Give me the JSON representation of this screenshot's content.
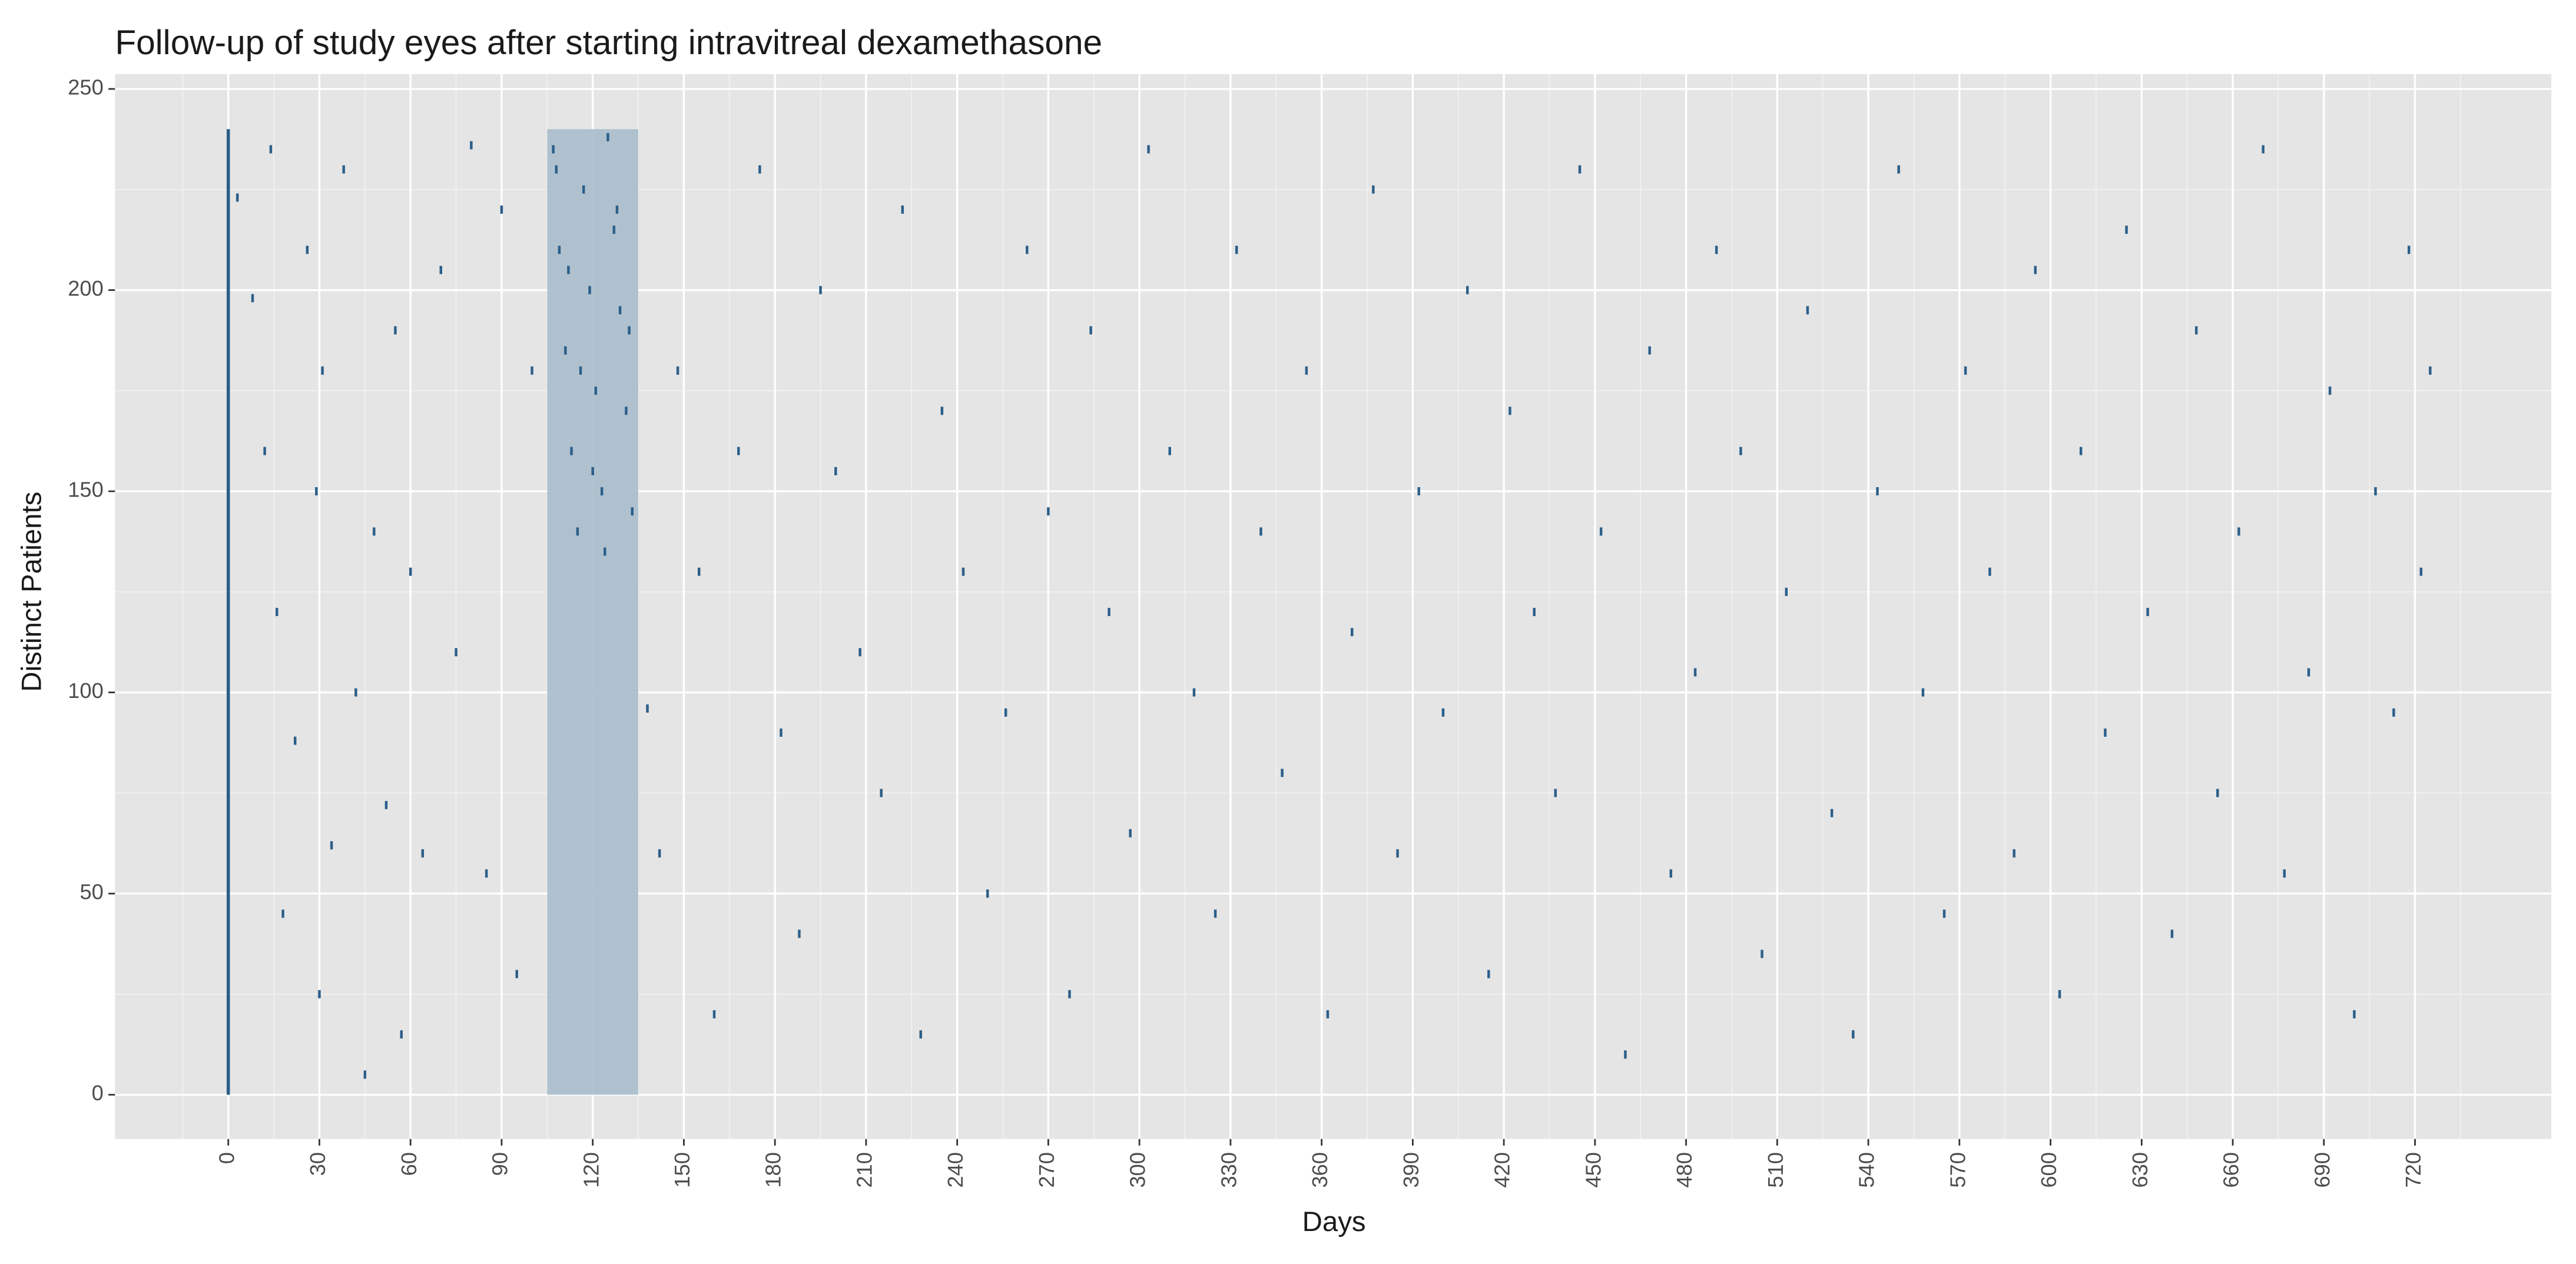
{
  "chart_data": {
    "type": "scatter",
    "title": "Follow-up of study eyes after starting intravitreal dexamethasone",
    "x_label": "Days",
    "y_label": "Distinct Patients",
    "xlim": [
      -37.3,
      764.9
    ],
    "ylim": [
      -11.0,
      253.7
    ],
    "xticks": [
      0,
      30,
      60,
      90,
      120,
      150,
      180,
      210,
      240,
      270,
      300,
      330,
      360,
      390,
      420,
      450,
      480,
      510,
      540,
      570,
      600,
      630,
      660,
      690,
      720
    ],
    "yticks": [
      0,
      50,
      100,
      150,
      200,
      250
    ],
    "grid": true,
    "highlight_band": {
      "xmin": 105,
      "xmax": 135,
      "ymin": 0,
      "ymax": 240,
      "color": "#a9bccb"
    },
    "baseline": {
      "x": 0,
      "ymin": 0,
      "ymax": 240,
      "color": "#2c5f8a"
    },
    "series": [
      {
        "color": "#2c5f8a",
        "x": [
          3,
          8,
          12,
          14,
          16,
          18,
          22,
          26,
          29,
          30,
          31,
          34,
          38,
          42,
          45,
          48,
          52,
          55,
          57,
          60,
          64,
          70,
          75,
          80,
          85,
          90,
          95,
          100,
          107,
          109,
          111,
          113,
          115,
          117,
          119,
          121,
          123,
          125,
          127,
          129,
          131,
          133,
          108,
          112,
          116,
          120,
          124,
          128,
          132,
          138,
          142,
          148,
          155,
          160,
          168,
          175,
          182,
          188,
          195,
          200,
          208,
          215,
          222,
          228,
          235,
          242,
          250,
          256,
          263,
          270,
          277,
          284,
          290,
          297,
          303,
          310,
          318,
          325,
          332,
          340,
          347,
          355,
          362,
          370,
          377,
          385,
          392,
          400,
          408,
          415,
          422,
          430,
          437,
          445,
          452,
          460,
          468,
          475,
          483,
          490,
          498,
          505,
          513,
          520,
          528,
          535,
          543,
          550,
          558,
          565,
          572,
          580,
          588,
          595,
          603,
          610,
          618,
          625,
          632,
          640,
          648,
          655,
          662,
          670,
          677,
          685,
          692,
          700,
          707,
          713,
          718,
          722,
          725
        ],
        "values": [
          223,
          198,
          160,
          235,
          120,
          45,
          88,
          210,
          150,
          25,
          180,
          62,
          230,
          100,
          5,
          140,
          72,
          190,
          15,
          130,
          60,
          205,
          110,
          236,
          55,
          220,
          30,
          180,
          235,
          210,
          185,
          160,
          140,
          225,
          200,
          175,
          150,
          238,
          215,
          195,
          170,
          145,
          230,
          205,
          180,
          155,
          135,
          220,
          190,
          96,
          60,
          180,
          130,
          20,
          160,
          230,
          90,
          40,
          200,
          155,
          110,
          75,
          220,
          15,
          170,
          130,
          50,
          95,
          210,
          145,
          25,
          190,
          120,
          65,
          235,
          160,
          100,
          45,
          210,
          140,
          80,
          180,
          20,
          115,
          225,
          60,
          150,
          95,
          200,
          30,
          170,
          120,
          75,
          230,
          140,
          10,
          185,
          55,
          105,
          210,
          160,
          35,
          125,
          195,
          70,
          15,
          150,
          230,
          100,
          45,
          180,
          130,
          60,
          205,
          25,
          160,
          90,
          215,
          120,
          40,
          190,
          75,
          140,
          235,
          55,
          105,
          175,
          20,
          150,
          95,
          210,
          130,
          180
        ]
      }
    ]
  }
}
